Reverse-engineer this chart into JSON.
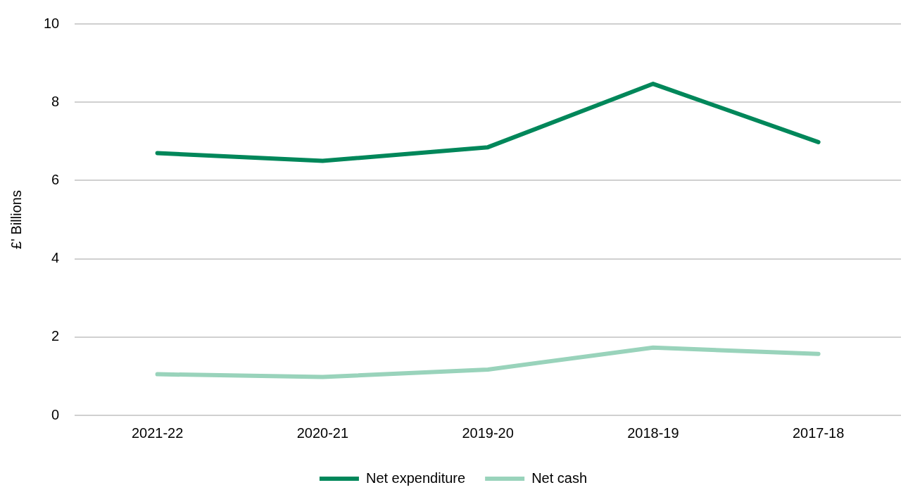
{
  "chart_data": {
    "type": "line",
    "ylabel": "£' Billions",
    "categories": [
      "2021-22",
      "2020-21",
      "2019-20",
      "2018-19",
      "2017-18"
    ],
    "series": [
      {
        "name": "Net expenditure",
        "color": "#00875a",
        "values": [
          6.7,
          6.5,
          6.85,
          8.47,
          6.98
        ]
      },
      {
        "name": "Net cash",
        "color": "#99d3bb",
        "values": [
          1.05,
          0.98,
          1.17,
          1.73,
          1.57
        ]
      }
    ],
    "ylim": [
      0,
      10
    ],
    "yticks": [
      0,
      2,
      4,
      6,
      8,
      10
    ],
    "grid": "y",
    "legend": "bottom",
    "marker": "none",
    "line_style": "solid"
  }
}
